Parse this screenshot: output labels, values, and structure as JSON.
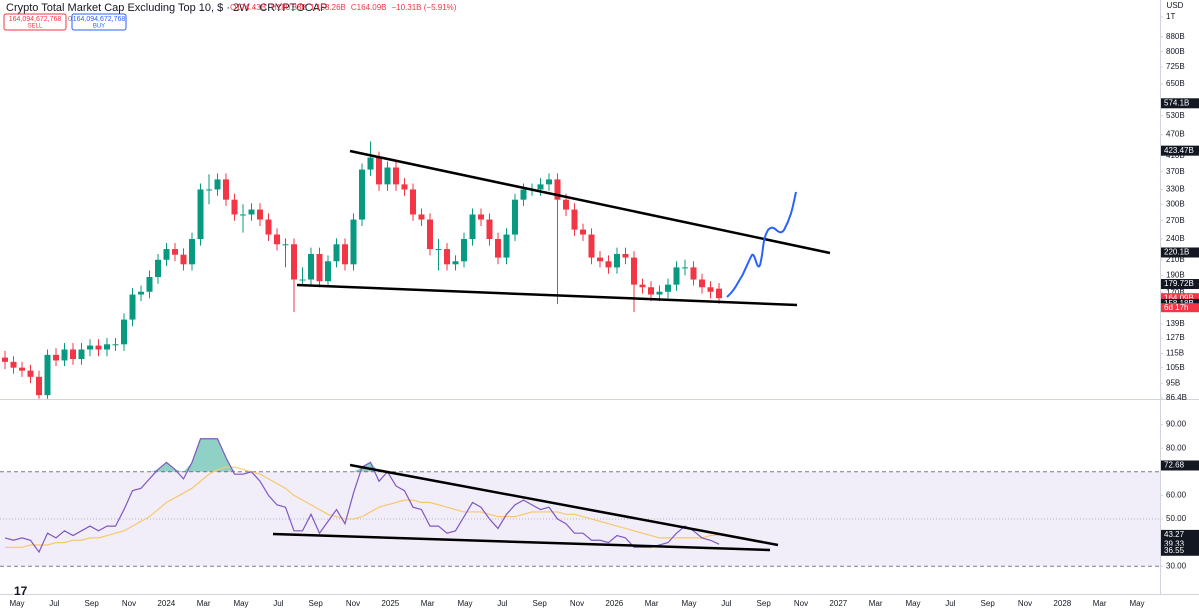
{
  "header": {
    "title": "Crypto Total Market Cap Excluding Top 10, $ · 2W · CRYPTOCAP",
    "ohlc": [
      "O174.43B",
      "H180.88B",
      "L158.26B",
      "C164.09B",
      "−10.31B (−5.91%)"
    ],
    "sell_price": "164,094,672,768",
    "sell": "SELL",
    "spread": "0",
    "buy_price": "164,094,672,768",
    "buy": "BUY",
    "currency": "USD",
    "countdown": "6d 17h",
    "time_labels": [
      "May",
      "Jul",
      "Sep",
      "Nov",
      "2024",
      "Mar",
      "May",
      "Jul",
      "Sep",
      "Nov",
      "2025",
      "Mar",
      "May",
      "Jul",
      "Sep",
      "Nov",
      "2026",
      "Mar",
      "May",
      "Jul",
      "Sep",
      "Nov",
      "2027",
      "Mar",
      "May",
      "Jul",
      "Sep",
      "Nov",
      "2028",
      "Mar",
      "May"
    ]
  },
  "chart_data": [
    {
      "type": "candlestick",
      "log_scale": true,
      "up_color": "#089981",
      "down_color": "#f23645",
      "ylim": [
        86.4,
        1115
      ],
      "yticks": [
        {
          "value": 1000,
          "label": "1T"
        },
        {
          "value": 880,
          "label": "880B"
        },
        {
          "value": 800,
          "label": "800B"
        },
        {
          "value": 725,
          "label": "725B"
        },
        {
          "value": 650,
          "label": "650B"
        },
        {
          "value": 530,
          "label": "530B"
        },
        {
          "value": 470,
          "label": "470B"
        },
        {
          "value": 410,
          "label": "410B"
        },
        {
          "value": 370,
          "label": "370B"
        },
        {
          "value": 330,
          "label": "330B"
        },
        {
          "value": 300,
          "label": "300B"
        },
        {
          "value": 270,
          "label": "270B"
        },
        {
          "value": 240,
          "label": "240B"
        },
        {
          "value": 210,
          "label": "210B"
        },
        {
          "value": 190,
          "label": "190B"
        },
        {
          "value": 170,
          "label": "170B"
        },
        {
          "value": 139,
          "label": "139B"
        },
        {
          "value": 127,
          "label": "127B"
        },
        {
          "value": 115,
          "label": "115B"
        },
        {
          "value": 105,
          "label": "105B"
        },
        {
          "value": 95,
          "label": "95B"
        },
        {
          "value": 86.4,
          "label": "86.4B"
        }
      ],
      "markers": [
        {
          "value": 574.1,
          "label": "574.1B",
          "color": "#131722"
        },
        {
          "value": 423.47,
          "label": "423.47B",
          "color": "#131722"
        },
        {
          "value": 220.1,
          "label": "220.1B",
          "color": "#131722"
        },
        {
          "value": 179.72,
          "label": "179.72B",
          "color": "#131722"
        },
        {
          "value": 164.09,
          "label": "164.09B",
          "color": "#f23645"
        },
        {
          "value": 158.18,
          "label": "158.18B",
          "color": "#131722"
        }
      ],
      "open": [
        112,
        109,
        105,
        103,
        99,
        88,
        114,
        110,
        118,
        111,
        118,
        121,
        118,
        122,
        122,
        143,
        168,
        171,
        188,
        210,
        225,
        217,
        204,
        240,
        330,
        330,
        352,
        309,
        281,
        281,
        290,
        272,
        247,
        232,
        232,
        185,
        185,
        218,
        183,
        208,
        232,
        204,
        272,
        375,
        405,
        341,
        380,
        341,
        330,
        281,
        272,
        225,
        225,
        204,
        208,
        240,
        281,
        272,
        240,
        213,
        247,
        309,
        330,
        330,
        341,
        352,
        309,
        290,
        255,
        247,
        213,
        208,
        200,
        218,
        213,
        179,
        176,
        168,
        171,
        179,
        200,
        200,
        185,
        176,
        174.43
      ],
      "high": [
        117,
        113,
        109,
        107,
        103,
        118,
        119,
        123,
        123,
        123,
        126,
        126,
        127,
        127,
        149,
        175,
        178,
        196,
        218,
        234,
        234,
        226,
        250,
        343,
        364,
        366,
        366,
        321,
        300,
        302,
        302,
        283,
        257,
        241,
        241,
        200,
        227,
        227,
        216,
        241,
        241,
        283,
        390,
        449,
        421,
        395,
        395,
        355,
        343,
        292,
        283,
        240,
        234,
        216,
        250,
        292,
        292,
        283,
        250,
        257,
        321,
        343,
        343,
        355,
        366,
        366,
        321,
        302,
        265,
        257,
        222,
        216,
        227,
        227,
        222,
        186,
        183,
        178,
        186,
        208,
        210,
        208,
        192,
        183,
        180.88
      ],
      "low": [
        104,
        101,
        99,
        95,
        86,
        86,
        106,
        106,
        107,
        107,
        113,
        113,
        113,
        117,
        117,
        137,
        161,
        164,
        180,
        202,
        208,
        196,
        196,
        230,
        300,
        317,
        297,
        270,
        250,
        270,
        261,
        237,
        223,
        200,
        150,
        178,
        178,
        176,
        176,
        200,
        196,
        196,
        261,
        360,
        327,
        327,
        327,
        317,
        270,
        261,
        216,
        196,
        196,
        196,
        200,
        230,
        261,
        230,
        204,
        204,
        237,
        297,
        317,
        317,
        327,
        158,
        278,
        245,
        237,
        204,
        200,
        192,
        192,
        204,
        150,
        169,
        161,
        161,
        164,
        172,
        190,
        178,
        169,
        164,
        158.26
      ],
      "close": [
        109,
        105,
        103,
        99,
        88,
        114,
        110,
        118,
        111,
        118,
        121,
        118,
        122,
        122,
        143,
        168,
        171,
        188,
        210,
        225,
        217,
        204,
        240,
        330,
        330,
        352,
        309,
        281,
        281,
        290,
        272,
        247,
        232,
        232,
        185,
        185,
        218,
        183,
        208,
        232,
        204,
        272,
        375,
        405,
        341,
        380,
        341,
        330,
        281,
        272,
        225,
        225,
        204,
        208,
        240,
        281,
        272,
        240,
        213,
        247,
        309,
        330,
        330,
        341,
        352,
        309,
        290,
        255,
        247,
        213,
        208,
        200,
        218,
        213,
        179,
        176,
        168,
        171,
        179,
        200,
        200,
        185,
        176,
        171,
        164.09
      ]
    },
    {
      "type": "line",
      "ylim": [
        19.5,
        100
      ],
      "yticks": [
        {
          "value": 90,
          "label": "90.00"
        },
        {
          "value": 80,
          "label": "80.00"
        },
        {
          "value": 60,
          "label": "60.00"
        },
        {
          "value": 50,
          "label": "50.00"
        },
        {
          "value": 30,
          "label": "30.00"
        }
      ],
      "bands": [
        30,
        70
      ],
      "midline": 50,
      "band_color": "#7e57c2",
      "markers": [
        {
          "value": 72.68,
          "label": "72.68",
          "color": "#131722"
        },
        {
          "value": 43.27,
          "label": "43.27",
          "color": "#131722"
        },
        {
          "value": 39.33,
          "label": "39.33",
          "color": "#131722"
        },
        {
          "value": 36.55,
          "label": "36.55",
          "color": "#131722"
        }
      ],
      "series": [
        {
          "color": "#7e57c2",
          "values": [
            42,
            41,
            42,
            41,
            36,
            44,
            42,
            45,
            43,
            45,
            47,
            45,
            47,
            47,
            54,
            62,
            63,
            67,
            71,
            74,
            71,
            67,
            74,
            84,
            84,
            84,
            76,
            69,
            69,
            70,
            66,
            60,
            56,
            55,
            45,
            45,
            52,
            44,
            49,
            54,
            48,
            61,
            72,
            74,
            66,
            70,
            64,
            62,
            55,
            54,
            47,
            47,
            44,
            45,
            51,
            57,
            55,
            50,
            46,
            52,
            56,
            58,
            56,
            54,
            55,
            50,
            48,
            44,
            44,
            41,
            41,
            40,
            43,
            42,
            38,
            38,
            38,
            39,
            40,
            44,
            47,
            45,
            42,
            41,
            39.33
          ]
        },
        {
          "color": "#f5c86b",
          "values": [
            38,
            38,
            38,
            39,
            39,
            39,
            40,
            40,
            41,
            41,
            42,
            42,
            43,
            44,
            45,
            47,
            49,
            51,
            54,
            57,
            59,
            61,
            63,
            66,
            69,
            71,
            72,
            72,
            71,
            70,
            69,
            67,
            65,
            63,
            60,
            58,
            56,
            54,
            52,
            51,
            50,
            50,
            51,
            53,
            55,
            56,
            57,
            58,
            58,
            57,
            57,
            56,
            55,
            54,
            53,
            53,
            53,
            52,
            51,
            51,
            51,
            52,
            53,
            53,
            53,
            53,
            52,
            52,
            51,
            50,
            49,
            48,
            47,
            46,
            45,
            44,
            43,
            42,
            42,
            42,
            42,
            42,
            42,
            43,
            43.27
          ]
        }
      ]
    }
  ]
}
